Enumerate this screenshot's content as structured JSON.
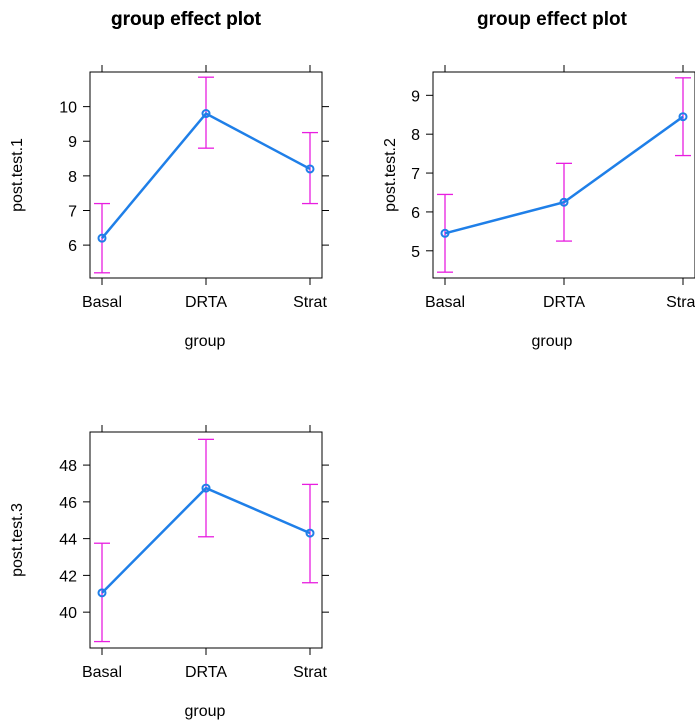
{
  "chart_data": [
    {
      "type": "line",
      "title": "group effect plot",
      "xlabel": "group",
      "ylabel": "post.test.1",
      "categories": [
        "Basal",
        "DRTA",
        "Strat"
      ],
      "values": [
        6.2,
        9.8,
        8.2
      ],
      "lower": [
        5.2,
        8.8,
        7.2
      ],
      "upper": [
        7.2,
        10.85,
        9.25
      ],
      "ylim": [
        5.05,
        11.0
      ],
      "yticks": [
        6,
        7,
        8,
        9,
        10
      ],
      "colors": {
        "line": "#1f7fe8",
        "ci": "#e81ee0"
      }
    },
    {
      "type": "line",
      "title": "group effect plot",
      "xlabel": "group",
      "ylabel": "post.test.2",
      "categories": [
        "Basal",
        "DRTA",
        "Strat"
      ],
      "values": [
        5.45,
        6.25,
        8.45
      ],
      "lower": [
        4.45,
        5.25,
        7.45
      ],
      "upper": [
        6.45,
        7.25,
        9.45
      ],
      "ylim": [
        4.3,
        9.6
      ],
      "yticks": [
        5,
        6,
        7,
        8,
        9
      ],
      "colors": {
        "line": "#1f7fe8",
        "ci": "#e81ee0"
      }
    },
    {
      "type": "line",
      "title": "group effect plot",
      "xlabel": "group",
      "ylabel": "post.test.3",
      "categories": [
        "Basal",
        "DRTA",
        "Strat"
      ],
      "values": [
        41.05,
        46.75,
        44.3
      ],
      "lower": [
        38.4,
        44.1,
        41.6
      ],
      "upper": [
        43.75,
        49.4,
        46.95
      ],
      "ylim": [
        38.05,
        49.8
      ],
      "yticks": [
        40,
        42,
        44,
        46,
        48
      ],
      "colors": {
        "line": "#1f7fe8",
        "ci": "#e81ee0"
      }
    }
  ]
}
